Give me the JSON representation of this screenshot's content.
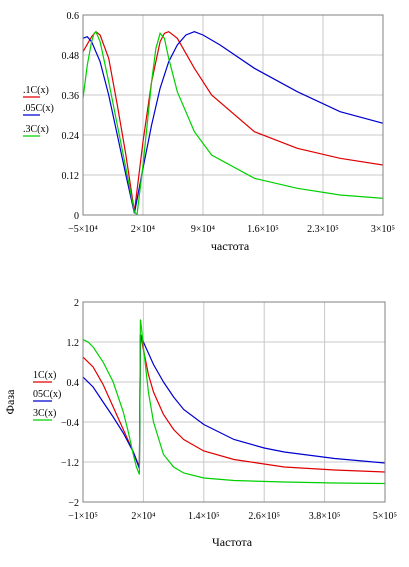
{
  "chart_data": [
    {
      "type": "line",
      "xlabel": "частота",
      "ylabel": "",
      "xlim": [
        -50000,
        300000
      ],
      "ylim": [
        0,
        0.6
      ],
      "grid": true,
      "legend_position": "left",
      "x_ticks": [
        {
          "value": -50000,
          "label": "−5×10⁴"
        },
        {
          "value": 20000,
          "label": "2×10⁴"
        },
        {
          "value": 90000,
          "label": "9×10⁴"
        },
        {
          "value": 160000,
          "label": "1.6×10⁵"
        },
        {
          "value": 230000,
          "label": "2.3×10⁵"
        },
        {
          "value": 300000,
          "label": "3×10⁵"
        }
      ],
      "y_ticks": [
        {
          "value": 0,
          "label": "0"
        },
        {
          "value": 0.12,
          "label": "0.12"
        },
        {
          "value": 0.24,
          "label": "0.24"
        },
        {
          "value": 0.36,
          "label": "0.36"
        },
        {
          "value": 0.48,
          "label": "0.48"
        },
        {
          "value": 0.6,
          "label": "0.6"
        }
      ],
      "series": [
        {
          "name": ".1C(x)",
          "color": "#e00000",
          "x": [
            -50000,
            -40000,
            -35000,
            -30000,
            -20000,
            -10000,
            0,
            10000,
            20000,
            30000,
            40000,
            45000,
            50000,
            60000,
            80000,
            100000,
            150000,
            200000,
            250000,
            300000
          ],
          "y": [
            0.49,
            0.535,
            0.55,
            0.54,
            0.47,
            0.33,
            0.18,
            0.01,
            0.22,
            0.4,
            0.52,
            0.545,
            0.55,
            0.53,
            0.44,
            0.36,
            0.25,
            0.2,
            0.17,
            0.15
          ]
        },
        {
          "name": ".05C(x)",
          "color": "#0000d0",
          "x": [
            -50000,
            -45000,
            -40000,
            -30000,
            -20000,
            -10000,
            0,
            10000,
            20000,
            30000,
            40000,
            50000,
            60000,
            70000,
            80000,
            90000,
            110000,
            150000,
            200000,
            250000,
            300000
          ],
          "y": [
            0.53,
            0.535,
            0.52,
            0.46,
            0.36,
            0.24,
            0.12,
            0.005,
            0.14,
            0.27,
            0.38,
            0.46,
            0.51,
            0.54,
            0.55,
            0.54,
            0.51,
            0.44,
            0.37,
            0.31,
            0.275
          ]
        },
        {
          "name": ".3C(x)",
          "color": "#00d000",
          "x": [
            -50000,
            -45000,
            -40000,
            -37000,
            -35000,
            -30000,
            -20000,
            -10000,
            0,
            10000,
            13000,
            20000,
            30000,
            35000,
            40000,
            45000,
            50000,
            60000,
            80000,
            100000,
            150000,
            200000,
            250000,
            300000
          ],
          "y": [
            0.35,
            0.45,
            0.52,
            0.545,
            0.55,
            0.52,
            0.4,
            0.27,
            0.14,
            0.01,
            0.0,
            0.15,
            0.4,
            0.5,
            0.545,
            0.53,
            0.47,
            0.37,
            0.25,
            0.18,
            0.11,
            0.08,
            0.06,
            0.05
          ]
        }
      ]
    },
    {
      "type": "line",
      "xlabel": "Частота",
      "ylabel": "Фаза",
      "xlim": [
        -100000,
        500000
      ],
      "ylim": [
        -2,
        2
      ],
      "grid": true,
      "legend_position": "left",
      "x_ticks": [
        {
          "value": -100000,
          "label": "−1×10⁵"
        },
        {
          "value": 20000,
          "label": "2×10⁴"
        },
        {
          "value": 140000,
          "label": "1.4×10⁵"
        },
        {
          "value": 260000,
          "label": "2.6×10⁵"
        },
        {
          "value": 380000,
          "label": "3.8×10⁵"
        },
        {
          "value": 500000,
          "label": "5×10⁵"
        }
      ],
      "y_ticks": [
        {
          "value": -2,
          "label": "−2"
        },
        {
          "value": -1.2,
          "label": "−1.2"
        },
        {
          "value": -0.4,
          "label": "−0.4"
        },
        {
          "value": 0.4,
          "label": "0.4"
        },
        {
          "value": 1.2,
          "label": "1.2"
        },
        {
          "value": 2,
          "label": "2"
        }
      ],
      "series": [
        {
          "name": "1C(x)",
          "color": "#e00000",
          "x": [
            -100000,
            -80000,
            -60000,
            -40000,
            -20000,
            0,
            10000,
            12000,
            14000,
            20000,
            30000,
            40000,
            60000,
            80000,
            100000,
            140000,
            200000,
            300000,
            400000,
            500000
          ],
          "y": [
            0.9,
            0.7,
            0.35,
            -0.1,
            -0.55,
            -1.0,
            -1.25,
            -1.33,
            1.35,
            1.05,
            0.55,
            0.2,
            -0.25,
            -0.55,
            -0.75,
            -0.98,
            -1.15,
            -1.3,
            -1.36,
            -1.4
          ]
        },
        {
          "name": "05C(x)",
          "color": "#0000d0",
          "x": [
            -100000,
            -80000,
            -60000,
            -40000,
            -20000,
            0,
            12000,
            14000,
            20000,
            40000,
            60000,
            80000,
            100000,
            140000,
            200000,
            260000,
            300000,
            400000,
            500000
          ],
          "y": [
            0.5,
            0.3,
            0.0,
            -0.3,
            -0.62,
            -1.0,
            -1.33,
            1.35,
            1.2,
            0.75,
            0.4,
            0.1,
            -0.15,
            -0.45,
            -0.75,
            -0.92,
            -1.0,
            -1.13,
            -1.22
          ]
        },
        {
          "name": "3C(x)",
          "color": "#00d000",
          "x": [
            -100000,
            -90000,
            -80000,
            -60000,
            -40000,
            -20000,
            -10000,
            0,
            6000,
            12000,
            14000,
            16000,
            20000,
            30000,
            40000,
            60000,
            80000,
            100000,
            140000,
            200000,
            300000,
            400000,
            500000
          ],
          "y": [
            1.25,
            1.2,
            1.1,
            0.8,
            0.4,
            -0.2,
            -0.6,
            -1.05,
            -1.3,
            -1.45,
            1.65,
            1.5,
            1.1,
            0.2,
            -0.4,
            -1.05,
            -1.3,
            -1.42,
            -1.52,
            -1.57,
            -1.6,
            -1.62,
            -1.63
          ]
        }
      ]
    }
  ]
}
